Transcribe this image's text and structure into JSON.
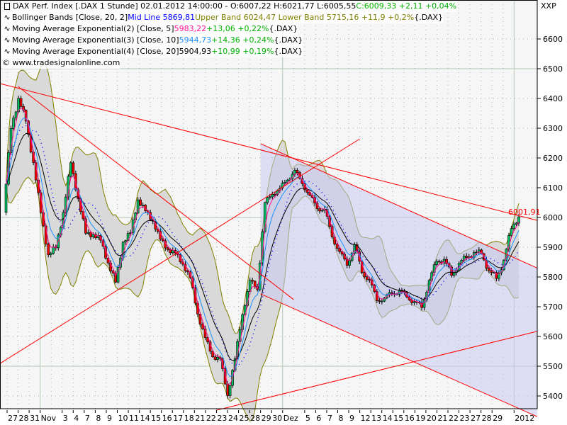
{
  "legend": {
    "main": {
      "text": "DAX Perf. Index [.DAX  1 Stunde] 02.01.2012 14:00:00 - O:6007,22 H:6021,77 L:6005,55 ",
      "close": "C:6009,33 +2,11 +0,04%"
    },
    "bollinger": {
      "name": "Bollinger Bands [Close, 20, 2] ",
      "mid": "Mid Line 5869,81",
      "bands": " Upper Band 6024,47 Lower Band 5715,16 +11,9 +0,2%",
      "suffix": " {.DAX}"
    },
    "ema1": {
      "name": "Moving Average Exponential(2) [Close, 5] ",
      "value": "5983,22",
      "change": " +13,06 +0,22%",
      "suffix": " {.DAX}"
    },
    "ema2": {
      "name": "Moving Average Exponential(3) [Close, 10] ",
      "value": "5944,73",
      "change": " +14,36 +0,24%",
      "suffix": " {.DAX}"
    },
    "ema3": {
      "name": "Moving Average Exponential(4) [Close, 20] ",
      "value": "5904,93",
      "change": " +10,99 +0,19%",
      "suffix": " {.DAX}"
    },
    "copyright": "© www.tradesignalonline.com"
  },
  "corner_label": "XXP",
  "last_price_label": "6001,91",
  "colors": {
    "up": "#00c060",
    "down": "#ff0000",
    "ema5": "#ff1493",
    "ema10": "#1e90ff",
    "ema20": "#000000",
    "bb_mid": "#0000ff",
    "bb_band": "#808000",
    "bb_fill": "#d9d9d9",
    "trendline": "#ff0000",
    "channel_fill": "#c8c8f0",
    "background": "#f6f6f6"
  },
  "chart_data": {
    "type": "candlestick",
    "instrument": "DAX Perf. Index",
    "ylim": [
      5350,
      6650
    ],
    "yticks": [
      5400,
      5500,
      5600,
      5700,
      5800,
      5900,
      6000,
      6100,
      6200,
      6300,
      6400,
      6500,
      6600
    ],
    "dates": [
      "2011-10-27",
      "2011-10-28",
      "2011-10-31",
      "2011-11-01",
      "2011-11-02",
      "2011-11-03",
      "2011-11-04",
      "2011-11-07",
      "2011-11-08",
      "2011-11-09",
      "2011-11-10",
      "2011-11-11",
      "2011-11-14",
      "2011-11-15",
      "2011-11-16",
      "2011-11-17",
      "2011-11-18",
      "2011-11-21",
      "2011-11-22",
      "2011-11-23",
      "2011-11-24",
      "2011-11-25",
      "2011-11-28",
      "2011-11-29",
      "2011-11-30",
      "2011-12-01",
      "2011-12-02",
      "2011-12-05",
      "2011-12-06",
      "2011-12-07",
      "2011-12-08",
      "2011-12-09",
      "2011-12-12",
      "2011-12-13",
      "2011-12-14",
      "2011-12-15",
      "2011-12-16",
      "2011-12-19",
      "2011-12-20",
      "2011-12-21",
      "2011-12-22",
      "2011-12-23",
      "2011-12-27",
      "2011-12-28",
      "2011-12-29",
      "2011-12-30",
      "2012-01-02"
    ],
    "xtick_labels": [
      "27",
      "28",
      "31",
      "Nov",
      "",
      "3",
      "4",
      "7",
      "8",
      "9",
      "10",
      "11",
      "14",
      "15",
      "16",
      "17",
      "18",
      "21",
      "22",
      "23",
      "24",
      "25",
      "28",
      "29",
      "30",
      "Dez",
      "",
      "5",
      "6",
      "7",
      "8",
      "9",
      "12",
      "13",
      "14",
      "15",
      "16",
      "19",
      "20",
      "21",
      "22",
      "23",
      "27",
      "28",
      "29",
      "",
      "2012"
    ],
    "closes_sampled": [
      6017,
      6302,
      6398,
      6326,
      6183,
      6017,
      5874,
      5898,
      6017,
      6183,
      6064,
      5945,
      5945,
      5921,
      5850,
      5779,
      5921,
      5945,
      6064,
      6017,
      5993,
      5921,
      5898,
      5874,
      5850,
      5790,
      5683,
      5588,
      5540,
      5517,
      5410,
      5517,
      5683,
      5779,
      5767,
      6040,
      6088,
      6088,
      6136,
      6148,
      6124,
      6064,
      6040,
      6017,
      5945,
      5874,
      5850,
      5898,
      5826,
      5779,
      5731,
      5719,
      5755,
      5743,
      5743,
      5707,
      5707,
      5779,
      5862,
      5850,
      5814,
      5838,
      5874,
      5874,
      5886,
      5814,
      5802,
      5850,
      5969,
      6002
    ],
    "last_price": 6001.91,
    "trendlines": [
      {
        "from": {
          "date": "2011-10-27",
          "price": 6444
        },
        "to": {
          "date": "2012-01-02",
          "price": 6010
        },
        "extend": "both"
      },
      {
        "from": {
          "date": "2011-10-28",
          "price": 6440
        },
        "to": {
          "date": "2011-12-02",
          "price": 5724
        },
        "extend": "none"
      },
      {
        "from": {
          "date": "2011-10-27",
          "price": 5524
        },
        "to": {
          "date": "2011-12-12",
          "price": 6264
        },
        "extend": "left"
      },
      {
        "from": {
          "date": "2011-11-23",
          "price": 5352
        },
        "to": {
          "date": "2012-01-02",
          "price": 5598
        },
        "extend": "right"
      },
      {
        "from": {
          "date": "2011-11-29",
          "price": 6248
        },
        "to": {
          "date": "2012-01-02",
          "price": 5865
        },
        "extend": "right"
      },
      {
        "from": {
          "date": "2011-11-29",
          "price": 5743
        },
        "to": {
          "date": "2012-01-02",
          "price": 5365
        },
        "extend": "right"
      }
    ],
    "channel": {
      "upper_line": 4,
      "lower_line": 5
    },
    "indicators": [
      "Bollinger Bands (20, 2)",
      "EMA 5",
      "EMA 10",
      "EMA 20"
    ],
    "grid": true
  }
}
